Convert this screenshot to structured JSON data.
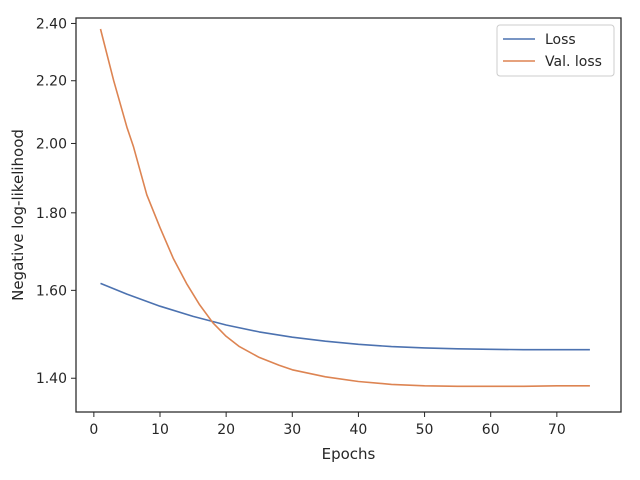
{
  "chart_data": {
    "type": "line",
    "xlabel": "Epochs",
    "ylabel": "Negative log-likelihood",
    "xlim": [
      -2.7,
      79.7
    ],
    "ylim": [
      1.33,
      2.42
    ],
    "yscale": "log",
    "grid": false,
    "legend_position": "top-right",
    "x_ticks": [
      0,
      10,
      20,
      30,
      40,
      50,
      60,
      70
    ],
    "x_tick_labels": [
      "0",
      "10",
      "20",
      "30",
      "40",
      "50",
      "60",
      "70"
    ],
    "y_ticks": [
      1.4,
      1.6,
      1.8,
      2.0,
      2.2,
      2.4
    ],
    "y_tick_labels": [
      "1.40",
      "1.60",
      "1.80",
      "2.00",
      "2.20",
      "2.40"
    ],
    "series": [
      {
        "name": "Loss",
        "color": "#4c72b0",
        "x": [
          1,
          5,
          10,
          15,
          20,
          25,
          30,
          35,
          40,
          45,
          50,
          55,
          60,
          65,
          70,
          75
        ],
        "y": [
          1.617,
          1.591,
          1.562,
          1.538,
          1.518,
          1.502,
          1.49,
          1.481,
          1.474,
          1.469,
          1.466,
          1.464,
          1.463,
          1.462,
          1.462,
          1.462
        ]
      },
      {
        "name": "Val. loss",
        "color": "#dd8452",
        "x": [
          1,
          3,
          5,
          6,
          8,
          10,
          12,
          14,
          16,
          18,
          20,
          22,
          25,
          28,
          30,
          35,
          40,
          45,
          50,
          55,
          60,
          65,
          70,
          75
        ],
        "y": [
          2.38,
          2.2,
          2.05,
          1.99,
          1.85,
          1.76,
          1.68,
          1.617,
          1.565,
          1.523,
          1.492,
          1.469,
          1.445,
          1.428,
          1.418,
          1.403,
          1.393,
          1.387,
          1.384,
          1.383,
          1.383,
          1.383,
          1.384,
          1.384
        ]
      }
    ]
  }
}
